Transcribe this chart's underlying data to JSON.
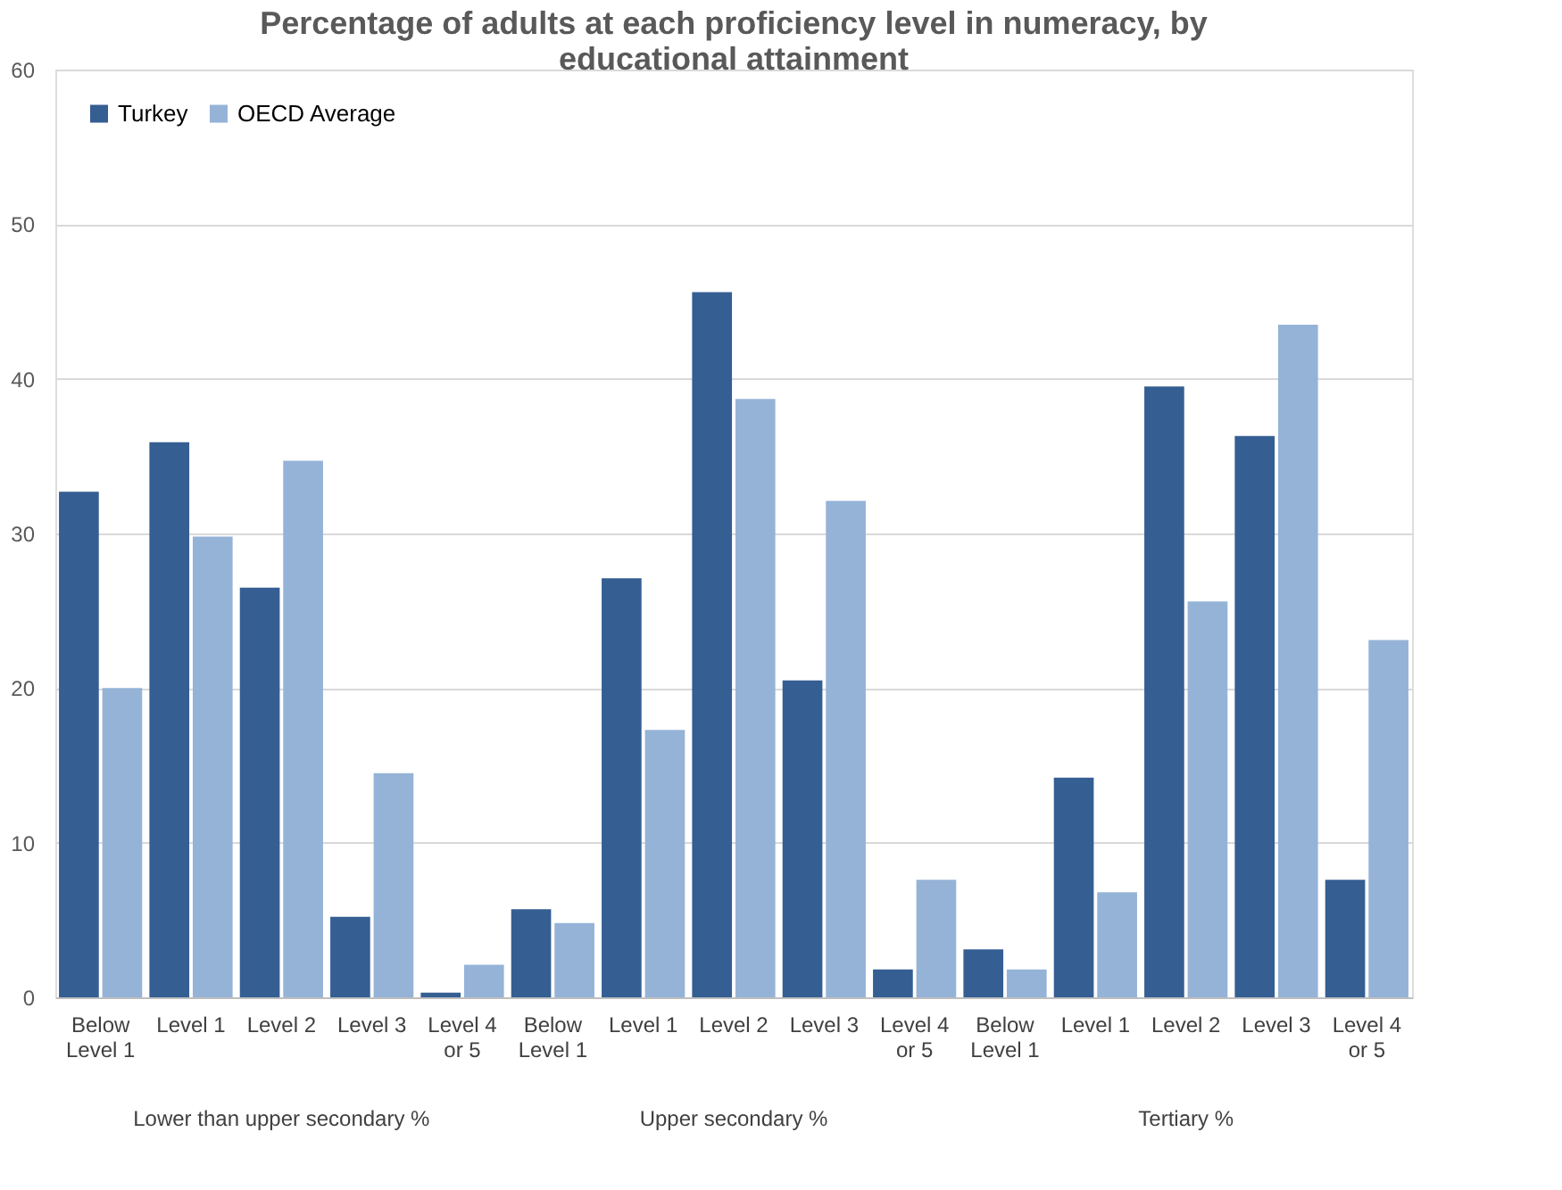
{
  "chart_data": {
    "type": "bar",
    "title": "Percentage of adults at each proficiency level in numeracy, by educational attainment",
    "categories": [
      "Below Level 1",
      "Level 1",
      "Level 2",
      "Level 3",
      "Level 4 or 5",
      "Below Level 1",
      "Level 1",
      "Level 2",
      "Level 3",
      "Level 4 or 5",
      "Below Level 1",
      "Level 1",
      "Level 2",
      "Level 3",
      "Level 4 or 5"
    ],
    "series": [
      {
        "name": "Turkey",
        "color": "#355e93",
        "values": [
          32.7,
          35.9,
          26.5,
          5.2,
          0.3,
          5.7,
          27.1,
          45.6,
          20.5,
          1.8,
          3.1,
          14.2,
          39.5,
          36.3,
          7.6
        ]
      },
      {
        "name": "OECD Average",
        "color": "#95b3d7",
        "values": [
          20.0,
          29.8,
          34.7,
          14.5,
          2.1,
          4.8,
          17.3,
          38.7,
          32.1,
          7.6,
          1.8,
          6.8,
          25.6,
          43.5,
          23.1
        ]
      }
    ],
    "annotations": [
      "Lower than upper secondary %",
      "Upper secondary %",
      "Tertiary %"
    ],
    "ylim": [
      0,
      60
    ],
    "yticks": [
      0,
      10,
      20,
      30,
      40,
      50,
      60
    ],
    "grid": "y",
    "legend": "top left"
  }
}
